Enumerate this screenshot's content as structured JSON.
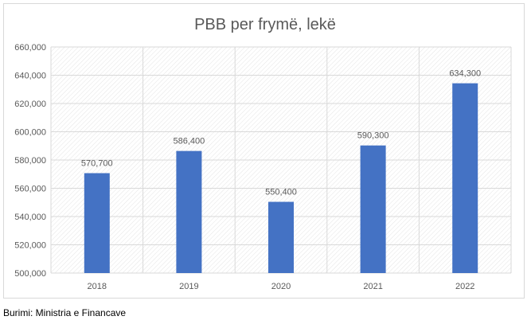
{
  "source": "Burimi: Ministria e Financave",
  "colors": {
    "bar": "#4472c4",
    "grid": "#d9d9d9",
    "text": "#595959",
    "title": "#595959"
  },
  "chart_data": {
    "type": "bar",
    "title": "PBB per frymë, lekë",
    "xlabel": "",
    "ylabel": "",
    "categories": [
      "2018",
      "2019",
      "2020",
      "2021",
      "2022"
    ],
    "values": [
      570700,
      586400,
      550400,
      590300,
      634300
    ],
    "data_labels": [
      "570,700",
      "586,400",
      "550,400",
      "590,300",
      "634,300"
    ],
    "ylim": [
      500000,
      660000
    ],
    "y_ticks": [
      500000,
      520000,
      540000,
      560000,
      580000,
      600000,
      620000,
      640000,
      660000
    ],
    "y_tick_labels": [
      "500,000",
      "520,000",
      "540,000",
      "560,000",
      "580,000",
      "600,000",
      "620,000",
      "640,000",
      "660,000"
    ],
    "grid": true,
    "legend": "none"
  }
}
